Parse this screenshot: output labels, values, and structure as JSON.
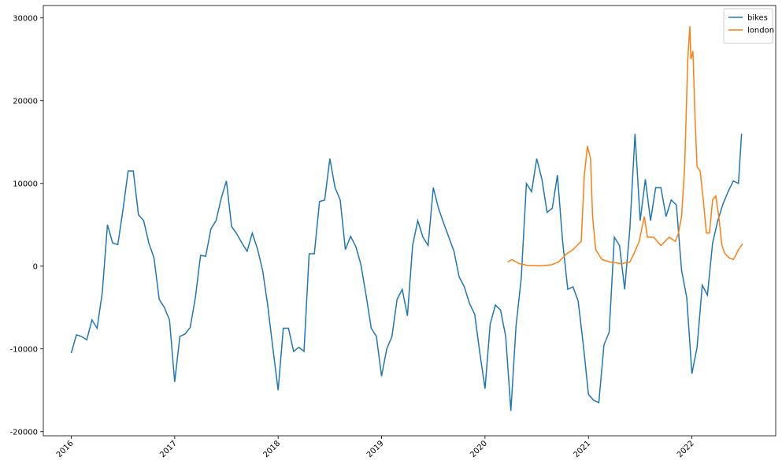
{
  "chart_data": {
    "type": "line",
    "xlim": [
      2015.73,
      2022.81
    ],
    "ylim": [
      -20500,
      31500
    ],
    "xticks": [
      2016,
      2017,
      2018,
      2019,
      2020,
      2021,
      2022
    ],
    "yticks": [
      -20000,
      -10000,
      0,
      10000,
      20000,
      30000
    ],
    "legend": "upper right",
    "series": [
      {
        "name": "bikes",
        "color": "#1f77b4",
        "x": [
          2016,
          2016.05,
          2016.1,
          2016.15,
          2016.2,
          2016.25,
          2016.3,
          2016.35,
          2016.4,
          2016.45,
          2016.5,
          2016.55,
          2016.6,
          2016.65,
          2016.7,
          2016.75,
          2016.8,
          2016.85,
          2016.9,
          2016.95,
          2017,
          2017.05,
          2017.1,
          2017.15,
          2017.2,
          2017.25,
          2017.3,
          2017.35,
          2017.4,
          2017.45,
          2017.5,
          2017.55,
          2017.6,
          2017.65,
          2017.7,
          2017.75,
          2017.8,
          2017.85,
          2017.9,
          2017.95,
          2018,
          2018.05,
          2018.1,
          2018.15,
          2018.2,
          2018.25,
          2018.3,
          2018.35,
          2018.4,
          2018.45,
          2018.5,
          2018.55,
          2018.6,
          2018.65,
          2018.7,
          2018.75,
          2018.8,
          2018.85,
          2018.9,
          2018.95,
          2019,
          2019.05,
          2019.1,
          2019.15,
          2019.2,
          2019.25,
          2019.3,
          2019.35,
          2019.4,
          2019.45,
          2019.5,
          2019.55,
          2019.6,
          2019.65,
          2019.7,
          2019.75,
          2019.8,
          2019.85,
          2019.9,
          2019.95,
          2020,
          2020.05,
          2020.1,
          2020.15,
          2020.2,
          2020.25,
          2020.3,
          2020.35,
          2020.4,
          2020.45,
          2020.5,
          2020.55,
          2020.6,
          2020.65,
          2020.7,
          2020.75,
          2020.8,
          2020.85,
          2020.9,
          2020.95,
          2021,
          2021.05,
          2021.1,
          2021.15,
          2021.2,
          2021.25,
          2021.3,
          2021.35,
          2021.4,
          2021.45,
          2021.5,
          2021.55,
          2021.6,
          2021.65,
          2021.7,
          2021.75,
          2021.8,
          2021.85,
          2021.9,
          2021.95,
          2022,
          2022.05,
          2022.1,
          2022.15,
          2022.2,
          2022.25,
          2022.3,
          2022.35,
          2022.4,
          2022.45,
          2022.48
        ],
        "values": [
          -10500,
          -8300,
          -8500,
          -8900,
          -6500,
          -7500,
          -3200,
          5000,
          2800,
          2600,
          6800,
          11500,
          11500,
          6200,
          5500,
          2800,
          1000,
          -4000,
          -5000,
          -6500,
          -14000,
          -8500,
          -8200,
          -7400,
          -3800,
          1300,
          1200,
          4500,
          5500,
          8200,
          10300,
          4800,
          3900,
          2800,
          1800,
          4000,
          2100,
          -500,
          -4800,
          -10000,
          -15000,
          -7500,
          -7500,
          -10300,
          -9800,
          -10300,
          1500,
          1500,
          7800,
          8000,
          13000,
          9500,
          8000,
          2000,
          3600,
          2400,
          200,
          -3500,
          -7500,
          -8500,
          -13300,
          -10000,
          -8500,
          -4000,
          -2800,
          -6000,
          2500,
          5500,
          3500,
          2500,
          9500,
          7000,
          5200,
          3500,
          1800,
          -1300,
          -2500,
          -4500,
          -5800,
          -10500,
          -14800,
          -7000,
          -4700,
          -5300,
          -8500,
          -17500,
          -7200,
          -1500,
          10000,
          9000,
          13000,
          10500,
          6500,
          7000,
          11000,
          3000,
          -2800,
          -2500,
          -4200,
          -9500,
          -15500,
          -16200,
          -16500,
          -9500,
          -8000,
          3500,
          2500,
          -2800,
          4500,
          16000,
          5500,
          10500,
          5500,
          9500,
          9500,
          6000,
          8000,
          7400,
          -500,
          -3800,
          -13000,
          -9800,
          -2300,
          -3500,
          2800,
          5500,
          7500,
          9000,
          10300,
          10000,
          16000
        ]
      },
      {
        "name": "london",
        "color": "#ff7f0e",
        "x": [
          2020.22,
          2020.26,
          2020.33,
          2020.41,
          2020.52,
          2020.64,
          2020.71,
          2020.79,
          2020.85,
          2020.89,
          2020.93,
          2020.96,
          2020.99,
          2021.02,
          2021.04,
          2021.07,
          2021.13,
          2021.21,
          2021.32,
          2021.4,
          2021.44,
          2021.49,
          2021.54,
          2021.57,
          2021.63,
          2021.7,
          2021.78,
          2021.84,
          2021.87,
          2021.9,
          2021.93,
          2021.96,
          2021.98,
          2021.99,
          2022.01,
          2022.03,
          2022.05,
          2022.08,
          2022.11,
          2022.14,
          2022.17,
          2022.2,
          2022.23,
          2022.26,
          2022.29,
          2022.32,
          2022.36,
          2022.4,
          2022.42,
          2022.45,
          2022.49
        ],
        "values": [
          500,
          800,
          300,
          100,
          50,
          150,
          500,
          1500,
          2000,
          2500,
          3000,
          11000,
          14500,
          13000,
          6000,
          2000,
          800,
          500,
          300,
          500,
          1500,
          3000,
          6000,
          3500,
          3500,
          2500,
          3500,
          3000,
          4000,
          6000,
          12000,
          25000,
          29000,
          25000,
          26000,
          18000,
          12000,
          11500,
          8000,
          4000,
          4000,
          8000,
          8500,
          6000,
          2500,
          1500,
          1000,
          800,
          1200,
          2000,
          2700
        ]
      }
    ]
  }
}
